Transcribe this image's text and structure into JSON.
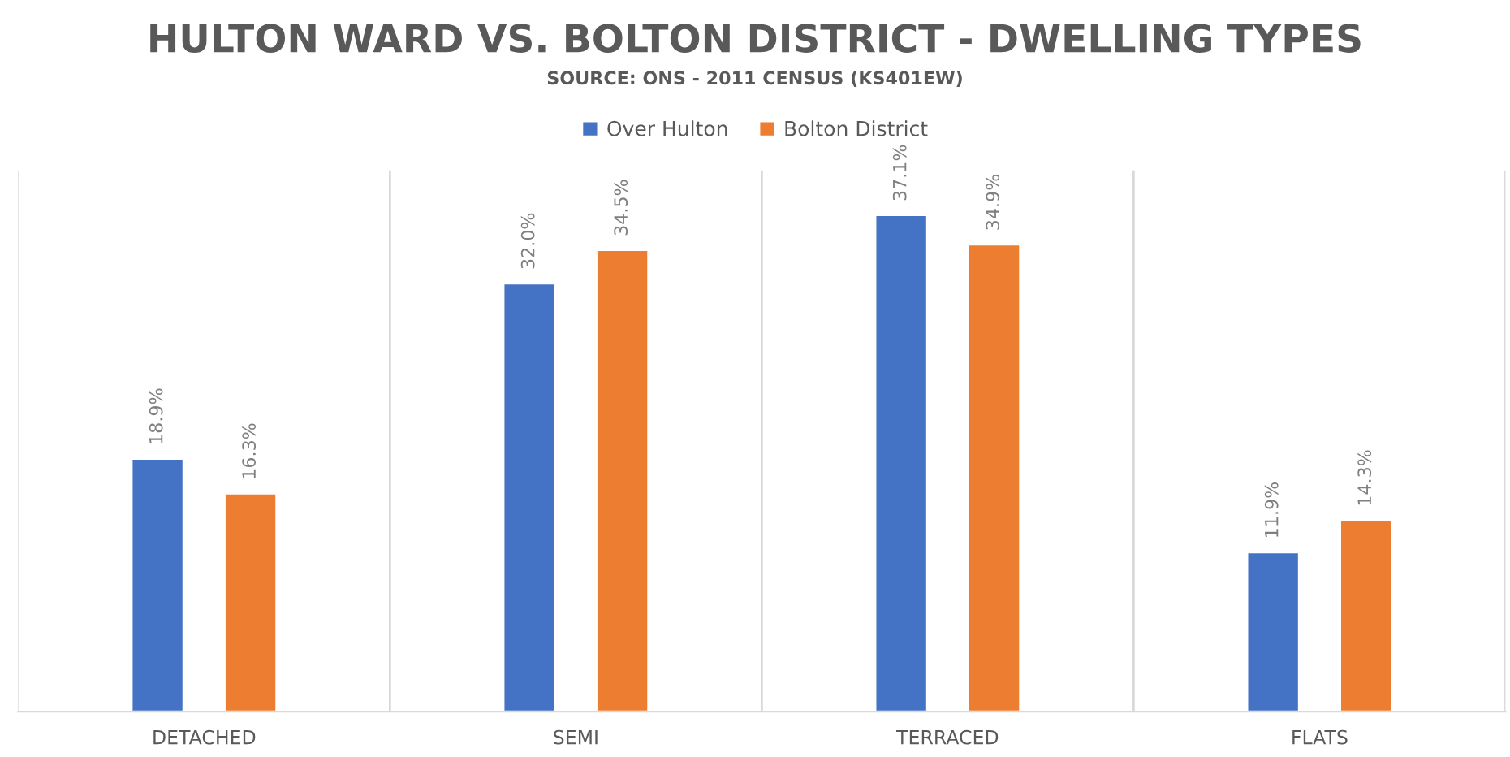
{
  "chart_data": {
    "type": "bar",
    "title": "HULTON WARD VS. BOLTON DISTRICT - DWELLING TYPES",
    "subtitle": "SOURCE: ONS - 2011 CENSUS (KS401EW)",
    "categories": [
      "DETACHED",
      "SEMI",
      "TERRACED",
      "FLATS"
    ],
    "series": [
      {
        "name": "Over Hulton",
        "color": "#4472c4",
        "values": [
          18.9,
          32.0,
          37.1,
          11.9
        ],
        "value_labels": [
          "18.9%",
          "32.0%",
          "37.1%",
          "11.9%"
        ]
      },
      {
        "name": "Bolton District",
        "color": "#ed7d31",
        "values": [
          16.3,
          34.5,
          34.9,
          14.3
        ],
        "value_labels": [
          "16.3%",
          "34.5%",
          "34.9%",
          "14.3%"
        ]
      }
    ],
    "grid": "x",
    "legend": "top",
    "tick_labels": "x"
  }
}
